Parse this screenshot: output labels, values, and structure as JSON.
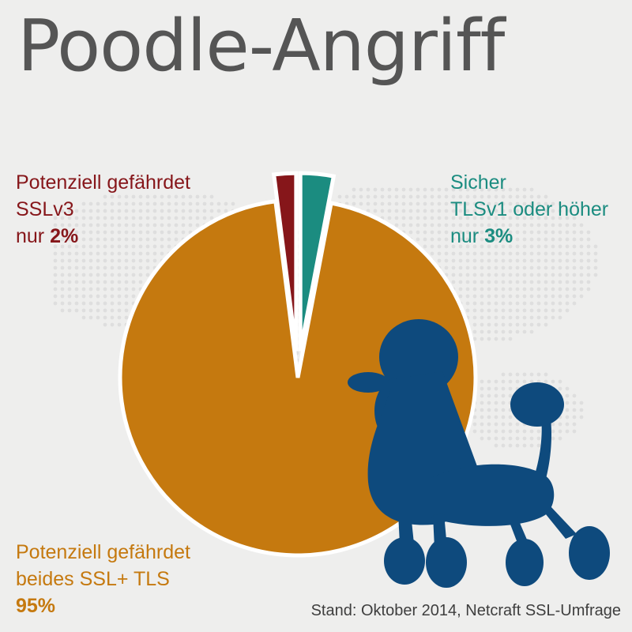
{
  "title": "Poodle-Angriff",
  "colors": {
    "ssl_only": "#86161a",
    "tls_only": "#1b8c80",
    "both": "#c5790f",
    "poodle": "#0e4a7d",
    "title": "#555555",
    "background": "#eeeeed"
  },
  "labels": {
    "ssl_only": {
      "line1": "Potenziell gefährdet",
      "line2": "SSLv3",
      "prefix": "nur",
      "percent": "2%"
    },
    "tls_only": {
      "line1": "Sicher",
      "line2": "TLSv1 oder höher",
      "prefix": "nur",
      "percent": "3%"
    },
    "both": {
      "line1": "Potenziell gefährdet",
      "line2": "beides SSL+ TLS",
      "percent": "95%"
    }
  },
  "source": "Stand: Oktober 2014, Netcraft SSL-Umfrage",
  "decoration": {
    "icon": "poodle-silhouette-icon",
    "background_icon": "world-map-dots-icon"
  },
  "chart_data": {
    "type": "pie",
    "categories": [
      "Sicher TLSv1 oder höher",
      "Potenziell gefährdet beides SSL+ TLS",
      "Potenziell gefährdet SSLv3"
    ],
    "values": [
      3,
      95,
      2
    ],
    "exploded": [
      true,
      false,
      true
    ],
    "start": "12 o'clock",
    "direction": "clockwise"
  }
}
